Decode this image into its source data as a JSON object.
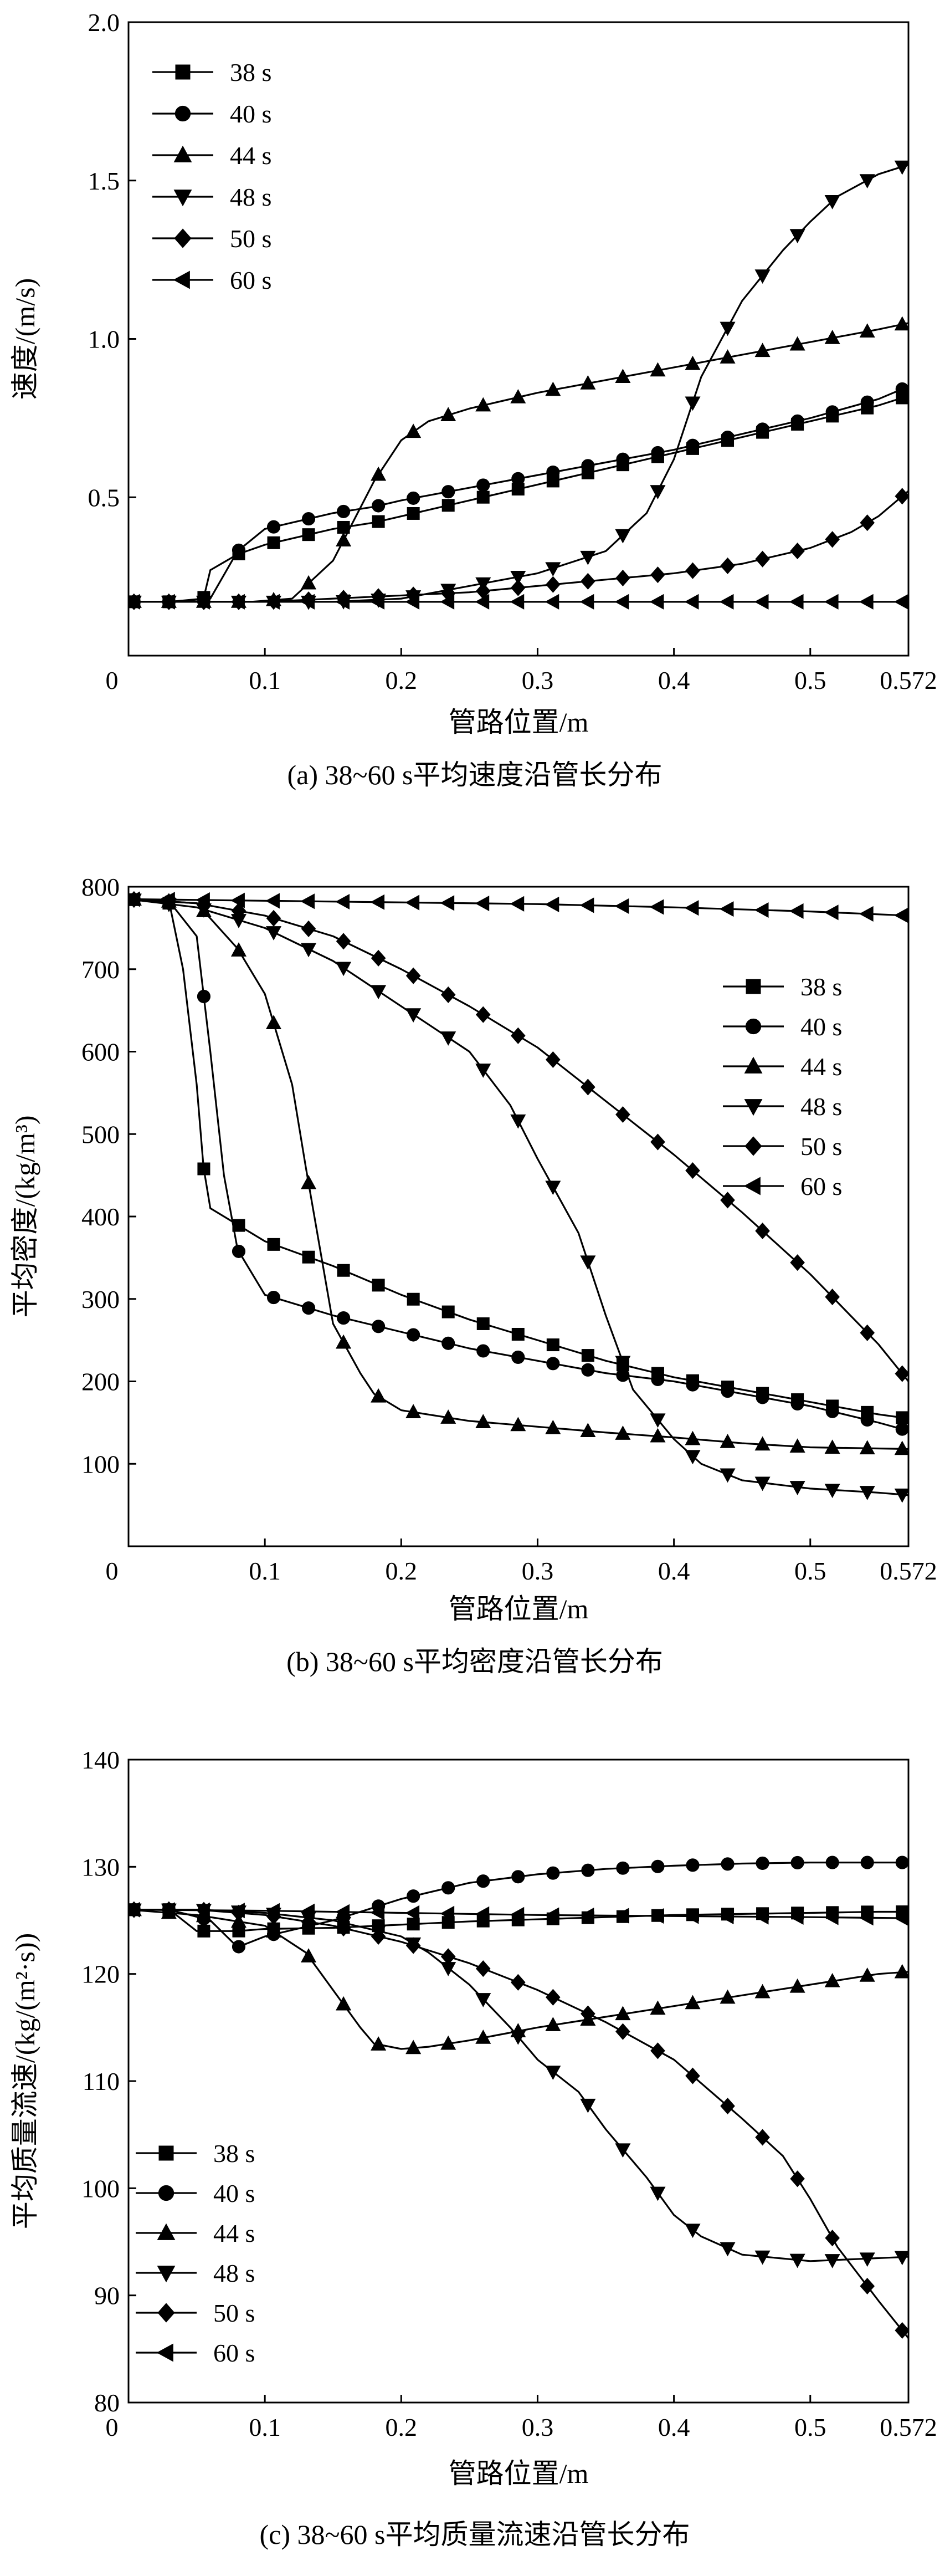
{
  "chart_data": [
    {
      "type": "line",
      "caption": "(a) 38~60 s平均速度沿管长分布",
      "xlabel": "管路位置/m",
      "ylabel": "速度/(m/s)",
      "xlim": [
        0,
        0.572
      ],
      "ylim": [
        0,
        2.0
      ],
      "x_ticks": [
        0.1,
        0.2,
        0.3,
        0.4,
        0.5,
        0.572
      ],
      "x_tick_labels": [
        "0.1",
        "0.2",
        "0.3",
        "0.4",
        "0.5",
        "0.572"
      ],
      "origin_label": "0",
      "y_ticks": [
        0.5,
        1.0,
        1.5,
        2.0
      ],
      "y_tick_labels": [
        "0.5",
        "1.0",
        "1.5",
        "2.0"
      ],
      "legend_position": "top-left",
      "series": [
        {
          "name": "38 s",
          "marker": "square",
          "x": [
            0,
            0.03,
            0.055,
            0.06,
            0.08,
            0.1,
            0.12,
            0.15,
            0.18,
            0.2,
            0.25,
            0.3,
            0.35,
            0.4,
            0.45,
            0.5,
            0.55,
            0.572
          ],
          "y": [
            0.17,
            0.17,
            0.18,
            0.27,
            0.32,
            0.35,
            0.37,
            0.4,
            0.42,
            0.44,
            0.49,
            0.54,
            0.59,
            0.64,
            0.69,
            0.74,
            0.79,
            0.82
          ]
        },
        {
          "name": "40 s",
          "marker": "circle",
          "x": [
            0,
            0.03,
            0.06,
            0.08,
            0.1,
            0.12,
            0.15,
            0.18,
            0.2,
            0.25,
            0.3,
            0.35,
            0.4,
            0.45,
            0.5,
            0.55,
            0.572
          ],
          "y": [
            0.17,
            0.17,
            0.18,
            0.33,
            0.4,
            0.42,
            0.45,
            0.47,
            0.49,
            0.53,
            0.57,
            0.61,
            0.65,
            0.7,
            0.75,
            0.81,
            0.85
          ]
        },
        {
          "name": "44 s",
          "marker": "triangle-up",
          "x": [
            0,
            0.03,
            0.06,
            0.09,
            0.12,
            0.15,
            0.18,
            0.2,
            0.22,
            0.25,
            0.3,
            0.35,
            0.4,
            0.45,
            0.5,
            0.55,
            0.572
          ],
          "y": [
            0.17,
            0.17,
            0.17,
            0.17,
            0.18,
            0.3,
            0.55,
            0.68,
            0.74,
            0.78,
            0.83,
            0.87,
            0.91,
            0.95,
            0.99,
            1.03,
            1.05
          ]
        },
        {
          "name": "48 s",
          "marker": "triangle-down",
          "x": [
            0,
            0.05,
            0.1,
            0.15,
            0.2,
            0.25,
            0.3,
            0.35,
            0.38,
            0.4,
            0.42,
            0.45,
            0.48,
            0.5,
            0.52,
            0.55,
            0.572
          ],
          "y": [
            0.17,
            0.17,
            0.17,
            0.17,
            0.18,
            0.22,
            0.26,
            0.33,
            0.45,
            0.62,
            0.88,
            1.12,
            1.28,
            1.37,
            1.45,
            1.52,
            1.55
          ]
        },
        {
          "name": "50 s",
          "marker": "diamond",
          "x": [
            0,
            0.05,
            0.1,
            0.15,
            0.2,
            0.25,
            0.3,
            0.35,
            0.4,
            0.45,
            0.5,
            0.53,
            0.55,
            0.572
          ],
          "y": [
            0.17,
            0.17,
            0.17,
            0.18,
            0.19,
            0.2,
            0.22,
            0.24,
            0.26,
            0.29,
            0.34,
            0.39,
            0.44,
            0.52
          ]
        },
        {
          "name": "60 s",
          "marker": "triangle-left",
          "x": [
            0,
            0.1,
            0.2,
            0.3,
            0.4,
            0.5,
            0.572
          ],
          "y": [
            0.17,
            0.17,
            0.17,
            0.17,
            0.17,
            0.17,
            0.17
          ]
        }
      ]
    },
    {
      "type": "line",
      "caption": "(b) 38~60 s平均密度沿管长分布",
      "xlabel": "管路位置/m",
      "ylabel": "平均密度/(kg/m³)",
      "xlim": [
        0,
        0.572
      ],
      "ylim": [
        0,
        800
      ],
      "x_ticks": [
        0.1,
        0.2,
        0.3,
        0.4,
        0.5,
        0.572
      ],
      "x_tick_labels": [
        "0.1",
        "0.2",
        "0.3",
        "0.4",
        "0.5",
        "0.572"
      ],
      "origin_label": "0",
      "y_ticks": [
        100,
        200,
        300,
        400,
        500,
        600,
        700,
        800
      ],
      "y_tick_labels": [
        "100",
        "200",
        "300",
        "400",
        "500",
        "600",
        "700",
        "800"
      ],
      "legend_position": "right",
      "series": [
        {
          "name": "38 s",
          "marker": "square",
          "x": [
            0,
            0.03,
            0.04,
            0.05,
            0.055,
            0.06,
            0.08,
            0.1,
            0.15,
            0.2,
            0.25,
            0.3,
            0.35,
            0.4,
            0.45,
            0.5,
            0.55,
            0.572
          ],
          "y": [
            785,
            780,
            700,
            560,
            460,
            410,
            390,
            370,
            340,
            305,
            275,
            250,
            225,
            205,
            190,
            175,
            160,
            155
          ]
        },
        {
          "name": "40 s",
          "marker": "circle",
          "x": [
            0,
            0.03,
            0.05,
            0.06,
            0.07,
            0.08,
            0.1,
            0.15,
            0.2,
            0.25,
            0.3,
            0.35,
            0.4,
            0.45,
            0.5,
            0.55,
            0.572
          ],
          "y": [
            785,
            782,
            740,
            600,
            450,
            360,
            305,
            280,
            260,
            240,
            225,
            210,
            200,
            185,
            170,
            150,
            140
          ]
        },
        {
          "name": "44 s",
          "marker": "triangle-up",
          "x": [
            0,
            0.05,
            0.08,
            0.1,
            0.12,
            0.13,
            0.14,
            0.15,
            0.17,
            0.18,
            0.2,
            0.25,
            0.3,
            0.35,
            0.4,
            0.45,
            0.5,
            0.572
          ],
          "y": [
            785,
            780,
            725,
            670,
            560,
            460,
            365,
            270,
            210,
            185,
            165,
            152,
            145,
            138,
            132,
            125,
            120,
            118
          ]
        },
        {
          "name": "48 s",
          "marker": "triangle-down",
          "x": [
            0,
            0.05,
            0.1,
            0.15,
            0.2,
            0.25,
            0.28,
            0.3,
            0.33,
            0.35,
            0.37,
            0.4,
            0.42,
            0.45,
            0.5,
            0.55,
            0.572
          ],
          "y": [
            785,
            775,
            750,
            710,
            655,
            600,
            535,
            470,
            380,
            280,
            190,
            130,
            100,
            80,
            70,
            65,
            62
          ]
        },
        {
          "name": "50 s",
          "marker": "diamond",
          "x": [
            0,
            0.05,
            0.1,
            0.15,
            0.2,
            0.25,
            0.3,
            0.35,
            0.4,
            0.45,
            0.5,
            0.55,
            0.572
          ],
          "y": [
            785,
            780,
            765,
            740,
            700,
            655,
            605,
            540,
            475,
            405,
            330,
            245,
            200
          ]
        },
        {
          "name": "60 s",
          "marker": "triangle-left",
          "x": [
            0,
            0.1,
            0.2,
            0.3,
            0.4,
            0.5,
            0.572
          ],
          "y": [
            785,
            783,
            781,
            779,
            775,
            770,
            765
          ]
        }
      ]
    },
    {
      "type": "line",
      "caption": "(c) 38~60 s平均质量流速沿管长分布",
      "xlabel": "管路位置/m",
      "ylabel": "平均质量流速/(kg/(m²·s))",
      "xlim": [
        0,
        0.572
      ],
      "ylim": [
        80,
        140
      ],
      "x_ticks": [
        0.1,
        0.2,
        0.3,
        0.4,
        0.5,
        0.572
      ],
      "x_tick_labels": [
        "0.1",
        "0.2",
        "0.3",
        "0.4",
        "0.5",
        "0.572"
      ],
      "origin_label": "0",
      "y_ticks": [
        80,
        90,
        100,
        110,
        120,
        130,
        140
      ],
      "y_tick_labels": [
        "80",
        "90",
        "100",
        "110",
        "120",
        "130",
        "140"
      ],
      "legend_position": "bottom-left",
      "series": [
        {
          "name": "38 s",
          "marker": "square",
          "x": [
            0,
            0.03,
            0.05,
            0.08,
            0.1,
            0.15,
            0.2,
            0.25,
            0.3,
            0.35,
            0.4,
            0.45,
            0.5,
            0.55,
            0.572
          ],
          "y": [
            126,
            126,
            124,
            124,
            124.2,
            124.3,
            124.6,
            124.9,
            125.1,
            125.3,
            125.5,
            125.6,
            125.7,
            125.8,
            125.8
          ]
        },
        {
          "name": "40 s",
          "marker": "circle",
          "x": [
            0,
            0.03,
            0.06,
            0.08,
            0.1,
            0.15,
            0.2,
            0.25,
            0.3,
            0.35,
            0.4,
            0.45,
            0.5,
            0.55,
            0.572
          ],
          "y": [
            126,
            126,
            125,
            122.5,
            123.5,
            125,
            127,
            128.5,
            129.3,
            129.8,
            130.1,
            130.3,
            130.4,
            130.4,
            130.4
          ]
        },
        {
          "name": "44 s",
          "marker": "triangle-up",
          "x": [
            0,
            0.05,
            0.1,
            0.13,
            0.15,
            0.17,
            0.18,
            0.2,
            0.22,
            0.25,
            0.3,
            0.35,
            0.4,
            0.45,
            0.5,
            0.55,
            0.572
          ],
          "y": [
            126,
            125.5,
            124.5,
            122,
            118.5,
            115,
            113.5,
            113,
            113.2,
            113.8,
            115,
            116,
            117,
            118,
            119,
            120,
            120.2
          ]
        },
        {
          "name": "48 s",
          "marker": "triangle-down",
          "x": [
            0,
            0.05,
            0.1,
            0.15,
            0.2,
            0.22,
            0.25,
            0.28,
            0.3,
            0.33,
            0.35,
            0.38,
            0.4,
            0.42,
            0.45,
            0.5,
            0.572
          ],
          "y": [
            126,
            126,
            125.7,
            125,
            123.5,
            122,
            119,
            115,
            112,
            109,
            105.5,
            101,
            97.5,
            95.5,
            93.8,
            93.2,
            93.6
          ]
        },
        {
          "name": "50 s",
          "marker": "diamond",
          "x": [
            0,
            0.05,
            0.1,
            0.15,
            0.2,
            0.25,
            0.3,
            0.35,
            0.4,
            0.45,
            0.48,
            0.5,
            0.52,
            0.55,
            0.572
          ],
          "y": [
            126,
            126,
            125.5,
            124.5,
            123,
            121,
            118.5,
            115.5,
            112,
            106.5,
            103,
            99,
            94.5,
            89.5,
            86
          ]
        },
        {
          "name": "60 s",
          "marker": "triangle-left",
          "x": [
            0,
            0.1,
            0.2,
            0.3,
            0.4,
            0.5,
            0.572
          ],
          "y": [
            126,
            125.9,
            125.7,
            125.5,
            125.4,
            125.3,
            125.2
          ]
        }
      ]
    }
  ]
}
